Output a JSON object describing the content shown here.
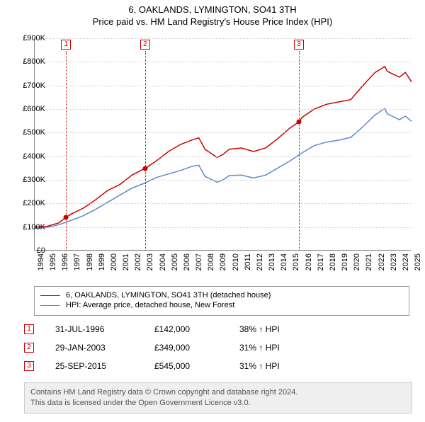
{
  "title": "6, OAKLANDS, LYMINGTON, SO41 3TH",
  "subtitle": "Price paid vs. HM Land Registry's House Price Index (HPI)",
  "chart": {
    "type": "line",
    "background_color": "#ffffff",
    "grid_color": "#d0d0d0",
    "axis_color": "#888888",
    "ylim": [
      0,
      900
    ],
    "ytick_step": 100,
    "ytick_prefix": "£",
    "ytick_suffix": "K",
    "xlim": [
      1994,
      2025
    ],
    "xticks": [
      1994,
      1995,
      1996,
      1997,
      1998,
      1999,
      2000,
      2001,
      2002,
      2003,
      2004,
      2005,
      2006,
      2007,
      2008,
      2009,
      2010,
      2011,
      2012,
      2013,
      2014,
      2015,
      2016,
      2017,
      2018,
      2019,
      2020,
      2021,
      2022,
      2023,
      2024,
      2025
    ],
    "label_fontsize": 11,
    "line_width": 1.5,
    "series": [
      {
        "name": "6, OAKLANDS, LYMINGTON, SO41 3TH (detached house)",
        "color": "#cc0000",
        "values": [
          [
            1994,
            100
          ],
          [
            1995,
            103
          ],
          [
            1996,
            118
          ],
          [
            1996.58,
            142
          ],
          [
            1997,
            155
          ],
          [
            1998,
            180
          ],
          [
            1999,
            215
          ],
          [
            2000,
            255
          ],
          [
            2001,
            280
          ],
          [
            2002,
            320
          ],
          [
            2003.08,
            349
          ],
          [
            2003,
            345
          ],
          [
            2004,
            380
          ],
          [
            2005,
            420
          ],
          [
            2006,
            450
          ],
          [
            2007,
            470
          ],
          [
            2007.5,
            478
          ],
          [
            2008,
            430
          ],
          [
            2009,
            395
          ],
          [
            2009.5,
            408
          ],
          [
            2010,
            430
          ],
          [
            2011,
            435
          ],
          [
            2012,
            420
          ],
          [
            2013,
            435
          ],
          [
            2014,
            475
          ],
          [
            2015,
            520
          ],
          [
            2015.73,
            545
          ],
          [
            2016,
            565
          ],
          [
            2017,
            600
          ],
          [
            2018,
            620
          ],
          [
            2019,
            630
          ],
          [
            2020,
            640
          ],
          [
            2021,
            700
          ],
          [
            2022,
            755
          ],
          [
            2022.8,
            780
          ],
          [
            2023,
            760
          ],
          [
            2024,
            735
          ],
          [
            2024.5,
            755
          ],
          [
            2025,
            715
          ]
        ]
      },
      {
        "name": "HPI: Average price, detached house, New Forest",
        "color": "#5b8bc9",
        "values": [
          [
            1994,
            95
          ],
          [
            1995,
            98
          ],
          [
            1996,
            110
          ],
          [
            1997,
            128
          ],
          [
            1998,
            148
          ],
          [
            1999,
            175
          ],
          [
            2000,
            205
          ],
          [
            2001,
            235
          ],
          [
            2002,
            265
          ],
          [
            2003,
            285
          ],
          [
            2004,
            310
          ],
          [
            2005,
            325
          ],
          [
            2006,
            340
          ],
          [
            2007,
            358
          ],
          [
            2007.5,
            362
          ],
          [
            2008,
            315
          ],
          [
            2009,
            290
          ],
          [
            2009.5,
            300
          ],
          [
            2010,
            318
          ],
          [
            2011,
            320
          ],
          [
            2012,
            308
          ],
          [
            2013,
            320
          ],
          [
            2014,
            350
          ],
          [
            2015,
            380
          ],
          [
            2016,
            415
          ],
          [
            2017,
            445
          ],
          [
            2018,
            460
          ],
          [
            2019,
            468
          ],
          [
            2020,
            480
          ],
          [
            2021,
            525
          ],
          [
            2022,
            575
          ],
          [
            2022.8,
            602
          ],
          [
            2023,
            580
          ],
          [
            2024,
            555
          ],
          [
            2024.5,
            570
          ],
          [
            2025,
            548
          ]
        ]
      }
    ],
    "sale_markers": [
      {
        "n": "1",
        "x": 1996.58,
        "y": 142
      },
      {
        "n": "2",
        "x": 2003.08,
        "y": 349
      },
      {
        "n": "3",
        "x": 2015.73,
        "y": 545
      }
    ]
  },
  "legend": {
    "items": [
      {
        "color": "#cc0000",
        "label": "6, OAKLANDS, LYMINGTON, SO41 3TH (detached house)"
      },
      {
        "color": "#5b8bc9",
        "label": "HPI: Average price, detached house, New Forest"
      }
    ]
  },
  "sales": [
    {
      "n": "1",
      "date": "31-JUL-1996",
      "price": "£142,000",
      "delta": "38% ↑ HPI"
    },
    {
      "n": "2",
      "date": "29-JAN-2003",
      "price": "£349,000",
      "delta": "31% ↑ HPI"
    },
    {
      "n": "3",
      "date": "25-SEP-2015",
      "price": "£545,000",
      "delta": "31% ↑ HPI"
    }
  ],
  "footer": {
    "line1": "Contains HM Land Registry data © Crown copyright and database right 2024.",
    "line2": "This data is licensed under the Open Government Licence v3.0."
  }
}
